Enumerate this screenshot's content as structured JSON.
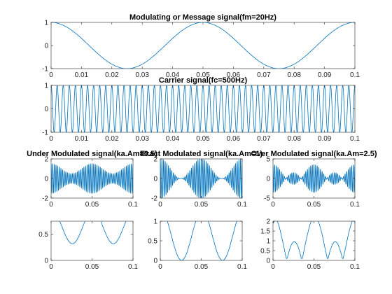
{
  "chart_data": [
    {
      "id": "message",
      "type": "line",
      "title": "Modulating or Message signal(fm=20Hz)",
      "formula": "cos(2*pi*fm*t)",
      "fm": 20,
      "t_range": [
        0,
        0.1
      ],
      "xlim": [
        0,
        0.1
      ],
      "ylim": [
        -1,
        1
      ],
      "xticks": [
        0,
        0.01,
        0.02,
        0.03,
        0.04,
        0.05,
        0.06,
        0.07,
        0.08,
        0.09,
        0.1
      ],
      "xtick_labels": [
        "0",
        "0.01",
        "0.02",
        "0.03",
        "0.04",
        "0.05",
        "0.06",
        "0.07",
        "0.08",
        "0.09",
        "0.1"
      ],
      "yticks": [
        -1,
        0,
        1
      ],
      "ytick_labels": [
        "-1",
        "0",
        "1"
      ],
      "color": "#0072bd"
    },
    {
      "id": "carrier",
      "type": "line",
      "title": "Carrier signal(fc=500Hz)",
      "formula": "cos(2*pi*fc*t)",
      "fc": 500,
      "t_range": [
        0,
        0.1
      ],
      "xlim": [
        0,
        0.1
      ],
      "ylim": [
        -1,
        1
      ],
      "xticks": [
        0,
        0.01,
        0.02,
        0.03,
        0.04,
        0.05,
        0.06,
        0.07,
        0.08,
        0.09,
        0.1
      ],
      "xtick_labels": [
        "0",
        "0.01",
        "0.02",
        "0.03",
        "0.04",
        "0.05",
        "0.06",
        "0.07",
        "0.08",
        "0.09",
        "0.1"
      ],
      "yticks": [
        -1,
        0,
        1
      ],
      "ytick_labels": [
        "-1",
        "0",
        "1"
      ],
      "color": "#0072bd"
    },
    {
      "id": "am-under",
      "type": "line",
      "title": "Under Modulated signal(ka.Am=0.5)",
      "formula": "(1 + m*cos(2*pi*fm*t))*cos(2*pi*fc*t)",
      "m": 0.5,
      "fm": 20,
      "fc": 500,
      "t_range": [
        0,
        0.1
      ],
      "xlim": [
        0,
        0.1
      ],
      "ylim": [
        -2,
        2
      ],
      "xticks": [
        0,
        0.05,
        0.1
      ],
      "xtick_labels": [
        "0",
        "0.05",
        "0.1"
      ],
      "yticks": [
        -2,
        0,
        2
      ],
      "ytick_labels": [
        "-2",
        "0",
        "2"
      ],
      "color": "#0072bd"
    },
    {
      "id": "am-exact",
      "type": "line",
      "title": "Exact Modulated signal(ka.Am=1)",
      "formula": "(1 + m*cos(2*pi*fm*t))*cos(2*pi*fc*t)",
      "m": 1,
      "fm": 20,
      "fc": 500,
      "t_range": [
        0,
        0.1
      ],
      "xlim": [
        0,
        0.1
      ],
      "ylim": [
        -2,
        2
      ],
      "xticks": [
        0,
        0.05,
        0.1
      ],
      "xtick_labels": [
        "0",
        "0.05",
        "0.1"
      ],
      "yticks": [
        -2,
        0,
        2
      ],
      "ytick_labels": [
        "-2",
        "0",
        "2"
      ],
      "color": "#0072bd"
    },
    {
      "id": "am-over",
      "type": "line",
      "title": "Over Modulated signal(ka.Am=2.5)",
      "formula": "(1 + m*cos(2*pi*fm*t))*cos(2*pi*fc*t)",
      "m": 2.5,
      "fm": 20,
      "fc": 500,
      "t_range": [
        0,
        0.1
      ],
      "xlim": [
        0,
        0.1
      ],
      "ylim": [
        -5,
        5
      ],
      "xticks": [
        0,
        0.05,
        0.1
      ],
      "xtick_labels": [
        "0",
        "0.05",
        "0.1"
      ],
      "yticks": [
        -5,
        0,
        5
      ],
      "ytick_labels": [
        "-5",
        "0",
        "5"
      ],
      "color": "#0072bd"
    },
    {
      "id": "demod-under",
      "type": "line",
      "title": "",
      "formula": "|1 + m*cos(2*pi*fm*t)|*|cos(2*pi*fc*t)| smoothed",
      "m": 0.5,
      "fm": 20,
      "fc": 500,
      "t_range": [
        0,
        0.1
      ],
      "xlim": [
        0,
        0.1
      ],
      "ylim": [
        0,
        0.75
      ],
      "xticks": [
        0,
        0.05,
        0.1
      ],
      "xtick_labels": [
        "0",
        "0.05",
        "0.1"
      ],
      "yticks": [
        0,
        0.5
      ],
      "ytick_labels": [
        "0",
        "0.5"
      ],
      "color": "#0072bd"
    },
    {
      "id": "demod-exact",
      "type": "line",
      "title": "",
      "formula": "|1 + m*cos(2*pi*fm*t)|*|cos(2*pi*fc*t)| smoothed",
      "m": 1,
      "fm": 20,
      "fc": 500,
      "t_range": [
        0,
        0.1
      ],
      "xlim": [
        0,
        0.1
      ],
      "ylim": [
        0,
        1
      ],
      "xticks": [
        0,
        0.05,
        0.1
      ],
      "xtick_labels": [
        "0",
        "0.05",
        "0.1"
      ],
      "yticks": [
        0,
        0.5,
        1
      ],
      "ytick_labels": [
        "0",
        "0.5",
        "1"
      ],
      "color": "#0072bd"
    },
    {
      "id": "demod-over",
      "type": "line",
      "title": "",
      "formula": "|1 + m*cos(2*pi*fm*t)|*|cos(2*pi*fc*t)| smoothed",
      "m": 2.5,
      "fm": 20,
      "fc": 500,
      "t_range": [
        0,
        0.1
      ],
      "xlim": [
        0,
        0.1
      ],
      "ylim": [
        0,
        2
      ],
      "xticks": [
        0,
        0.05,
        0.1
      ],
      "xtick_labels": [
        "0",
        "0.05",
        "0.1"
      ],
      "yticks": [
        0,
        0.5,
        1,
        1.5,
        2
      ],
      "ytick_labels": [
        "0",
        "0.5",
        "1",
        "1.5",
        "2"
      ],
      "color": "#0072bd"
    }
  ]
}
